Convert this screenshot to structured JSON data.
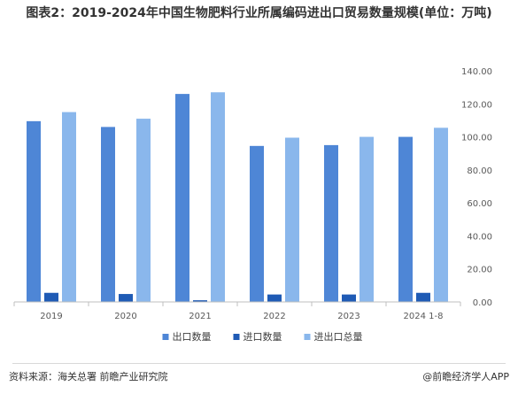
{
  "title": "图表2：2019-2024年中国生物肥料行业所属编码进出口贸易数量规模(单位：万吨)",
  "footer": {
    "source": "资料来源：海关总署 前瞻产业研究院",
    "brand": "@前瞻经济学人APP"
  },
  "colors": {
    "export": "#4e86d6",
    "import": "#1f5bb5",
    "total": "#8ab7ec",
    "axis": "#bfbfbf",
    "grid": "#e6e6e6"
  },
  "chart_data": {
    "type": "bar",
    "categories": [
      "2019",
      "2020",
      "2021",
      "2022",
      "2023",
      "2024 1-8"
    ],
    "series": [
      {
        "name": "出口数量",
        "values": [
          109.5,
          106,
          126,
          94.5,
          95,
          100
        ]
      },
      {
        "name": "进口数量",
        "values": [
          5.5,
          4.8,
          1.0,
          4.5,
          4.5,
          5.5
        ]
      },
      {
        "name": "进出口总量",
        "values": [
          115,
          111,
          127,
          99.5,
          100,
          105.5
        ]
      }
    ],
    "y_axis": {
      "position": "right",
      "ylim": [
        0,
        140
      ],
      "ticks": [
        "0.00",
        "20.00",
        "40.00",
        "60.00",
        "80.00",
        "100.00",
        "120.00",
        "140.00"
      ]
    },
    "legend_position": "bottom",
    "grid": false
  }
}
